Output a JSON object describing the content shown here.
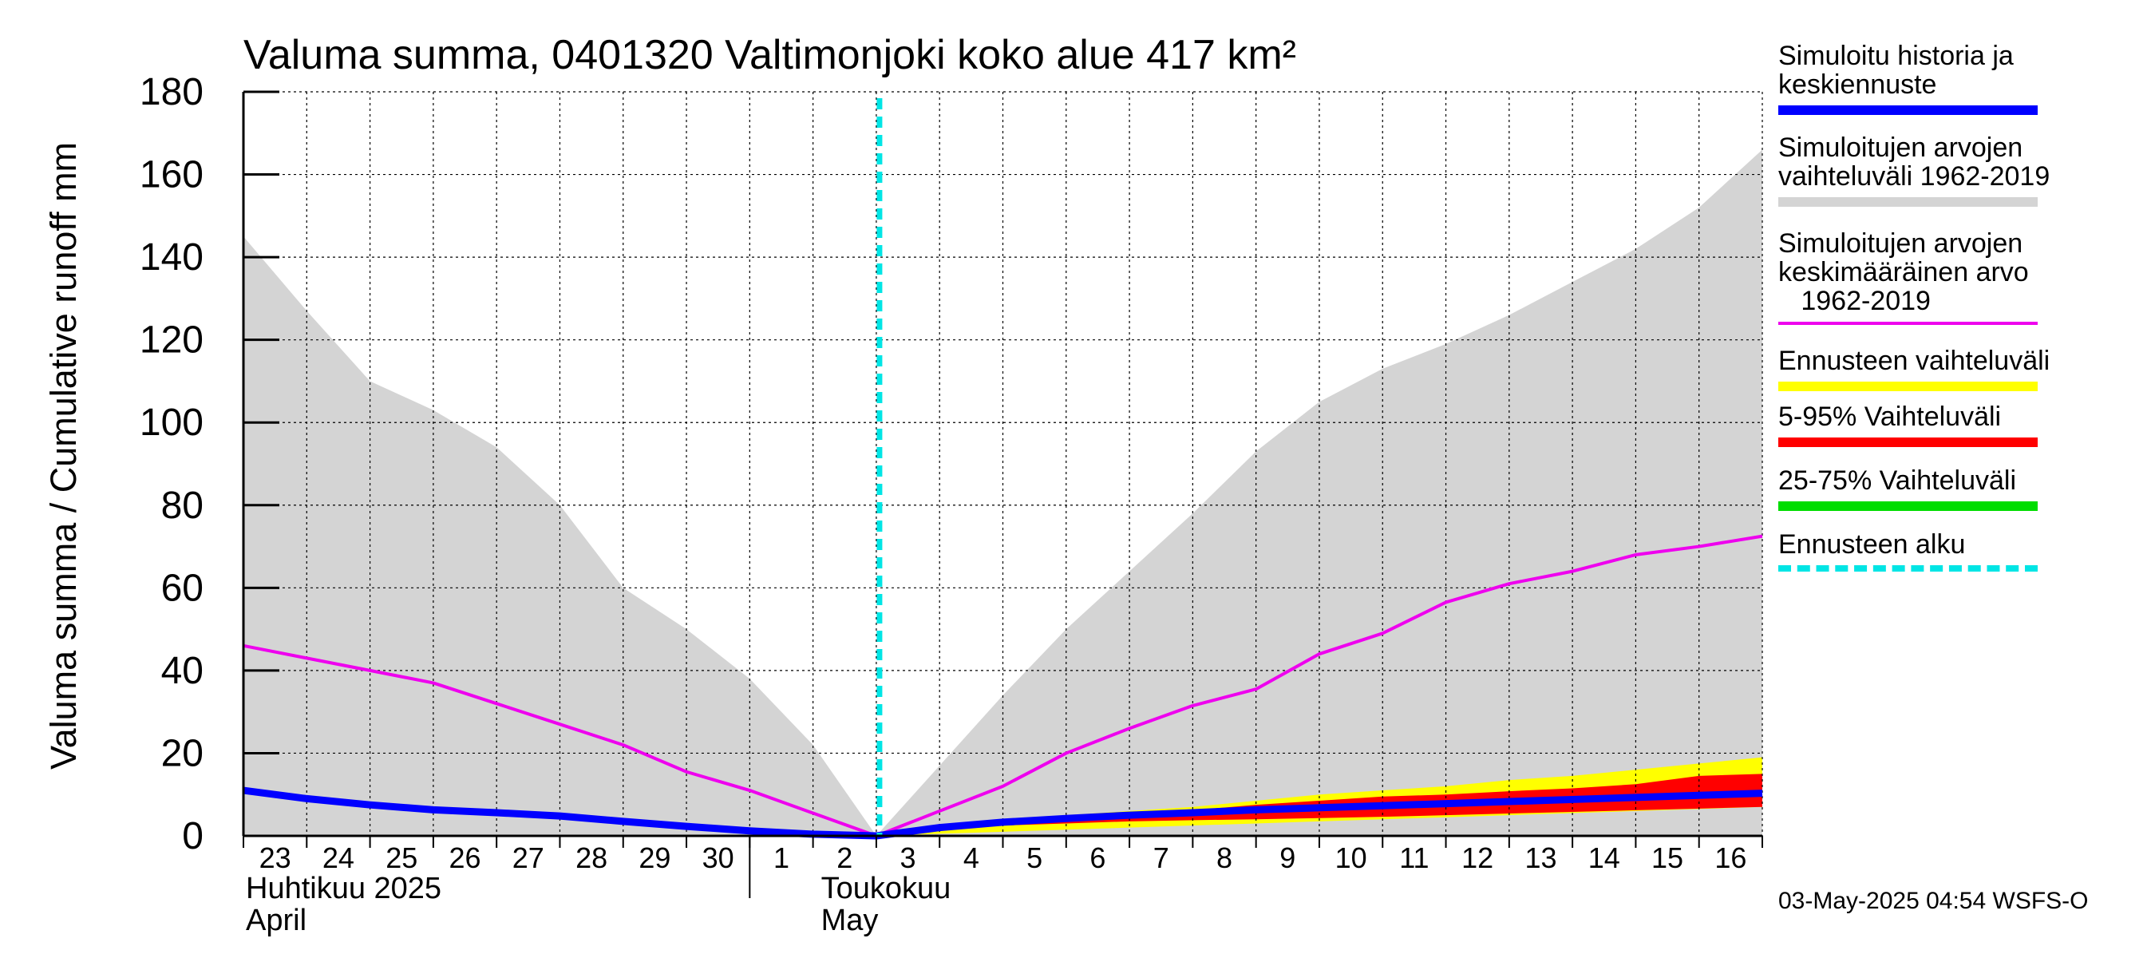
{
  "chart_data": {
    "type": "area",
    "title": "Valuma summa, 0401320 Valtimonjoki koko alue 417 km²",
    "ylabel": "Valuma summa / Cumulative runoff    mm",
    "ylim": [
      0,
      180
    ],
    "yticks": [
      0,
      20,
      40,
      60,
      80,
      100,
      120,
      140,
      160,
      180
    ],
    "grid": true,
    "legend_position": "right",
    "x_day_labels": [
      "23",
      "24",
      "25",
      "26",
      "27",
      "28",
      "29",
      "30",
      "1",
      "2",
      "3",
      "4",
      "5",
      "6",
      "7",
      "8",
      "9",
      "10",
      "11",
      "12",
      "13",
      "14",
      "15",
      "16"
    ],
    "month_labels": [
      {
        "fi": "Huhtikuu  2025",
        "en": "April"
      },
      {
        "fi": "Toukokuu",
        "en": "May"
      }
    ],
    "forecast_start": "3",
    "x": [
      "2025-04-23",
      "2025-04-24",
      "2025-04-25",
      "2025-04-26",
      "2025-04-27",
      "2025-04-28",
      "2025-04-29",
      "2025-04-30",
      "2025-05-01",
      "2025-05-02",
      "2025-05-03",
      "2025-05-04",
      "2025-05-05",
      "2025-05-06",
      "2025-05-07",
      "2025-05-08",
      "2025-05-09",
      "2025-05-10",
      "2025-05-11",
      "2025-05-12",
      "2025-05-13",
      "2025-05-14",
      "2025-05-15",
      "2025-05-16",
      "2025-05-17"
    ],
    "series": [
      {
        "name": "Simuloitujen arvojen vaihteluväli 1962-2019",
        "role": "band",
        "color": "#d4d4d4",
        "low": [
          0,
          0,
          0,
          0,
          0,
          0,
          0,
          0,
          0,
          0,
          0,
          0,
          0,
          0,
          0,
          0,
          0,
          0,
          0,
          0,
          0,
          0,
          0,
          0,
          0
        ],
        "high": [
          145,
          127,
          110,
          103,
          94,
          80,
          60,
          50,
          38,
          22,
          0,
          17,
          34,
          50,
          64,
          78,
          93,
          105,
          113,
          119,
          126,
          134,
          142,
          152,
          166
        ]
      },
      {
        "name": "Ennusteen vaihteluväli",
        "role": "band",
        "color": "#ffff00",
        "low": [
          null,
          null,
          null,
          null,
          null,
          null,
          null,
          null,
          null,
          null,
          0,
          0.5,
          1,
          1.5,
          2,
          2.5,
          3,
          3.5,
          4,
          4.5,
          5,
          5.5,
          6,
          6.5,
          7
        ],
        "high": [
          null,
          null,
          null,
          null,
          null,
          null,
          null,
          null,
          null,
          null,
          0,
          2.5,
          4,
          5,
          6,
          7,
          8.5,
          10,
          11,
          12,
          13.5,
          14.5,
          16,
          17.5,
          19
        ]
      },
      {
        "name": "5-95% Vaihteluväli",
        "role": "band",
        "color": "#ff0000",
        "low": [
          null,
          null,
          null,
          null,
          null,
          null,
          null,
          null,
          null,
          null,
          0,
          1.5,
          2.5,
          3,
          3.5,
          3.8,
          4,
          4.3,
          4.6,
          5,
          5.4,
          5.8,
          6.2,
          6.6,
          7
        ],
        "high": [
          null,
          null,
          null,
          null,
          null,
          null,
          null,
          null,
          null,
          null,
          0,
          2,
          3.5,
          4.5,
          5.5,
          6.2,
          7.5,
          8.5,
          9.5,
          10,
          10.8,
          11.5,
          12.5,
          14.5,
          15
        ]
      },
      {
        "name": "25-75% Vaihteluväli",
        "role": "band",
        "color": "#00dd00",
        "low": [
          null,
          null,
          null,
          null,
          null,
          null,
          null,
          null,
          null,
          null,
          0,
          1.8,
          3,
          3.8,
          4.6,
          5.2,
          5.9,
          6.4,
          7,
          7.5,
          8,
          8.5,
          9,
          9.5,
          10
        ],
        "high": [
          null,
          null,
          null,
          null,
          null,
          null,
          null,
          null,
          null,
          null,
          0,
          2.1,
          3.5,
          4.4,
          5.2,
          5.8,
          6.5,
          7,
          7.6,
          8.1,
          8.6,
          9.1,
          9.7,
          10.3,
          10.8
        ]
      },
      {
        "name": "Simuloitujen arvojen keskimääräinen arvo 1962-2019",
        "role": "line",
        "color": "#ee00ee",
        "values": [
          46,
          43,
          40,
          37,
          32,
          27,
          22,
          15.5,
          11,
          5.5,
          0,
          6,
          12,
          20,
          26,
          31.5,
          35.5,
          44,
          49,
          56.5,
          61,
          64,
          68,
          70,
          72.5
        ]
      },
      {
        "name": "Simuloitu historia ja keskiennuste",
        "role": "line",
        "color": "#0000ff",
        "values": [
          11,
          9,
          7.5,
          6.3,
          5.6,
          4.8,
          3.5,
          2.3,
          1.2,
          0.4,
          0,
          2,
          3.3,
          4.2,
          5,
          5.6,
          6.3,
          6.8,
          7.3,
          7.8,
          8.3,
          8.8,
          9.3,
          9.8,
          10.3
        ]
      },
      {
        "name": "Ennusteen alku",
        "role": "vline",
        "color": "#00e5e5",
        "x": "2025-05-03"
      }
    ]
  },
  "legend": [
    {
      "label": "Simuloitu historia ja\nkeskiennuste",
      "color": "#0000ff",
      "style": "solid"
    },
    {
      "label": "Simuloitujen arvojen\nvaihteluväli 1962-2019",
      "color": "#d4d4d4",
      "style": "solid"
    },
    {
      "label": "Simuloitujen arvojen\nkeskimääräinen arvo\n   1962-2019",
      "color": "#ee00ee",
      "style": "thin"
    },
    {
      "label": "Ennusteen vaihteluväli",
      "color": "#ffff00",
      "style": "solid"
    },
    {
      "label": "5-95% Vaihteluväli",
      "color": "#ff0000",
      "style": "solid"
    },
    {
      "label": "25-75% Vaihteluväli",
      "color": "#00dd00",
      "style": "solid"
    },
    {
      "label": "Ennusteen alku",
      "color": "#00e5e5",
      "style": "dashed"
    }
  ],
  "footer": "03-May-2025 04:54 WSFS-O"
}
